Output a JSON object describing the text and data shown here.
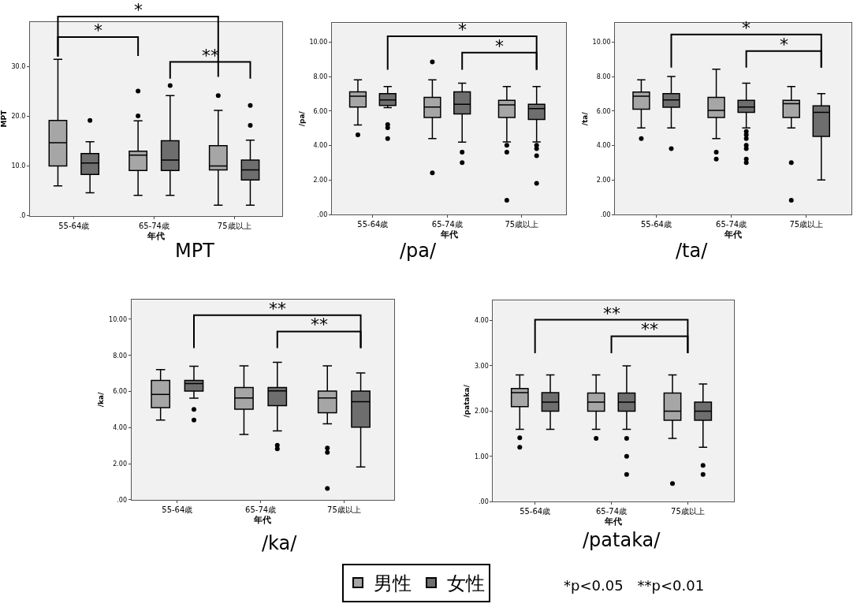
{
  "chart_data": [
    {
      "type": "box",
      "title": "MPT",
      "xlabel": "年代",
      "ylabel": "MPT",
      "categories": [
        "55-64歳",
        "65-74歳",
        "75歳以上"
      ],
      "ylim": [
        0,
        39
      ],
      "yticks": [
        {
          "value": 0,
          "label": ".0"
        },
        {
          "value": 10,
          "label": "10.0"
        },
        {
          "value": 20,
          "label": "20.0"
        },
        {
          "value": 30,
          "label": "30.0"
        }
      ],
      "legend": "bottom",
      "series": [
        {
          "name": "男性",
          "color": "#a6a6a6",
          "boxes": [
            {
              "low": 6,
              "q1": 10,
              "median": 14.7,
              "q3": 19.2,
              "high": 31.5
            },
            {
              "low": 4.1,
              "q1": 9.1,
              "median": 12.2,
              "q3": 13,
              "high": 19.1,
              "outliers": [
                20.1,
                25.1
              ]
            },
            {
              "low": 2.1,
              "q1": 9.2,
              "median": 10,
              "q3": 14.1,
              "high": 21.2,
              "outliers": [
                24.2
              ]
            }
          ]
        },
        {
          "name": "女性",
          "color": "#6e6e6e",
          "boxes": [
            {
              "low": 4.6,
              "q1": 8.3,
              "median": 10.6,
              "q3": 12.5,
              "high": 14.9,
              "outliers": [
                19.2
              ]
            },
            {
              "low": 4.1,
              "q1": 9.1,
              "median": 11.2,
              "q3": 15.1,
              "high": 24.2,
              "outliers": [
                26.2
              ]
            },
            {
              "low": 2.1,
              "q1": 7.2,
              "median": 9.2,
              "q3": 11.2,
              "high": 15.2,
              "outliers": [
                18.2,
                22.2
              ]
            }
          ]
        }
      ],
      "annotations": [
        "*",
        "*",
        "**"
      ]
    },
    {
      "type": "box",
      "title": "/pa/",
      "xlabel": "年代",
      "ylabel": "/pa/",
      "categories": [
        "55-64歳",
        "65-74歳",
        "75歳以上"
      ],
      "ylim": [
        0,
        11.1
      ],
      "yticks": [
        {
          "value": 0,
          "label": ".00"
        },
        {
          "value": 2,
          "label": "2.00"
        },
        {
          "value": 4,
          "label": "4.00"
        },
        {
          "value": 6,
          "label": "6.00"
        },
        {
          "value": 8,
          "label": "8.00"
        },
        {
          "value": 10,
          "label": "10.00"
        }
      ],
      "legend": "bottom",
      "series": [
        {
          "color": "#a6a6a6",
          "boxes": [
            {
              "low": 5.2,
              "q1": 6.24,
              "median": 6.86,
              "q3": 7.12,
              "high": 7.82,
              "outliers": [
                4.62
              ]
            },
            {
              "low": 4.41,
              "q1": 5.63,
              "median": 6.24,
              "q3": 6.8,
              "high": 7.82,
              "outliers": [
                8.85,
                2.42
              ]
            },
            {
              "low": 4.21,
              "q1": 5.63,
              "median": 6.36,
              "q3": 6.62,
              "high": 7.42,
              "outliers": [
                4.02,
                3.62,
                0.82
              ]
            }
          ]
        },
        {
          "color": "#6e6e6e",
          "boxes": [
            {
              "low": 6.2,
              "q1": 6.33,
              "median": 6.65,
              "q3": 7.01,
              "high": 7.42,
              "outliers": [
                5.22,
                5.03,
                4.41
              ]
            },
            {
              "low": 4.2,
              "q1": 5.83,
              "median": 6.4,
              "q3": 7.12,
              "high": 7.62,
              "outliers": [
                3.62,
                3.01
              ]
            },
            {
              "low": 4.21,
              "q1": 5.52,
              "median": 6.14,
              "q3": 6.4,
              "high": 7.42,
              "outliers": [
                4.02,
                3.82,
                3.41,
                1.81
              ]
            }
          ]
        }
      ],
      "annotations": [
        "*",
        "*"
      ]
    },
    {
      "type": "box",
      "title": "/ta/",
      "xlabel": "年代",
      "ylabel": "/ta/",
      "categories": [
        "55-64歳",
        "65-74歳",
        "75歳以上"
      ],
      "ylim": [
        0,
        11.1
      ],
      "yticks": [
        {
          "value": 0,
          "label": ".00"
        },
        {
          "value": 2,
          "label": "2.00"
        },
        {
          "value": 4,
          "label": "4.00"
        },
        {
          "value": 6,
          "label": "6.00"
        },
        {
          "value": 8,
          "label": "8.00"
        },
        {
          "value": 10,
          "label": "10.00"
        }
      ],
      "legend": "bottom",
      "series": [
        {
          "color": "#a6a6a6",
          "boxes": [
            {
              "low": 5.02,
              "q1": 6.11,
              "median": 6.86,
              "q3": 7.1,
              "high": 7.82,
              "outliers": [
                4.41
              ]
            },
            {
              "low": 4.41,
              "q1": 5.63,
              "median": 6.04,
              "q3": 6.8,
              "high": 8.43,
              "outliers": [
                3.62,
                3.22
              ]
            },
            {
              "low": 5.02,
              "q1": 5.63,
              "median": 6.43,
              "q3": 6.62,
              "high": 7.42,
              "outliers": [
                3.01,
                0.82
              ]
            }
          ]
        },
        {
          "color": "#6e6e6e",
          "boxes": [
            {
              "low": 5.02,
              "q1": 6.22,
              "median": 6.65,
              "q3": 7.01,
              "high": 8.01,
              "outliers": [
                3.82
              ]
            },
            {
              "low": 5.02,
              "q1": 5.93,
              "median": 6.24,
              "q3": 6.62,
              "high": 7.62,
              "outliers": [
                4.82,
                4.62,
                4.41,
                4.02,
                3.82,
                3.22,
                3.01
              ]
            },
            {
              "low": 2.0,
              "q1": 4.53,
              "median": 5.93,
              "q3": 6.31,
              "high": 7.01
            }
          ]
        }
      ],
      "annotations": [
        "*",
        "*"
      ]
    },
    {
      "type": "box",
      "title": "/ka/",
      "xlabel": "年代",
      "ylabel": "/ka/",
      "categories": [
        "55-64歳",
        "65-74歳",
        "75歳以上"
      ],
      "ylim": [
        0,
        11.1
      ],
      "yticks": [
        {
          "value": 0,
          "label": ".00"
        },
        {
          "value": 2,
          "label": "2.00"
        },
        {
          "value": 4,
          "label": "4.00"
        },
        {
          "value": 6,
          "label": "6.00"
        },
        {
          "value": 8,
          "label": "8.00"
        },
        {
          "value": 10,
          "label": "10.00"
        }
      ],
      "legend": "bottom",
      "series": [
        {
          "color": "#a6a6a6",
          "boxes": [
            {
              "low": 4.42,
              "q1": 5.11,
              "median": 5.84,
              "q3": 6.61,
              "high": 7.21
            },
            {
              "low": 3.62,
              "q1": 5.02,
              "median": 5.64,
              "q3": 6.22,
              "high": 7.42
            },
            {
              "low": 4.21,
              "q1": 4.82,
              "median": 5.64,
              "q3": 6.02,
              "high": 7.42,
              "outliers": [
                2.87,
                2.63,
                0.63
              ]
            }
          ]
        },
        {
          "color": "#6e6e6e",
          "boxes": [
            {
              "low": 5.63,
              "q1": 6.02,
              "median": 6.44,
              "q3": 6.61,
              "high": 7.4,
              "outliers": [
                5.01,
                4.42
              ]
            },
            {
              "low": 3.82,
              "q1": 5.22,
              "median": 6.03,
              "q3": 6.22,
              "high": 7.62,
              "outliers": [
                3.02,
                2.83
              ]
            },
            {
              "low": 1.82,
              "q1": 4.03,
              "median": 5.43,
              "q3": 6.02,
              "high": 7.03
            }
          ]
        }
      ],
      "annotations": [
        "**",
        "**"
      ]
    },
    {
      "type": "box",
      "title": "/pataka/",
      "xlabel": "年代",
      "ylabel": "/pataka/",
      "categories": [
        "55-64歳",
        "65-74歳",
        "75歳以上"
      ],
      "ylim": [
        0,
        4.44
      ],
      "yticks": [
        {
          "value": 0,
          "label": ".00"
        },
        {
          "value": 1,
          "label": "1.00"
        },
        {
          "value": 2,
          "label": "2.00"
        },
        {
          "value": 3,
          "label": "3.00"
        },
        {
          "value": 4,
          "label": "4.00"
        }
      ],
      "legend": "bottom",
      "series": [
        {
          "color": "#a6a6a6",
          "boxes": [
            {
              "low": 1.6,
              "q1": 2.1,
              "median": 2.41,
              "q3": 2.5,
              "high": 2.8,
              "outliers": [
                1.41,
                1.2
              ]
            },
            {
              "low": 1.6,
              "q1": 2.0,
              "median": 2.2,
              "q3": 2.4,
              "high": 2.8,
              "outliers": [
                1.4
              ]
            },
            {
              "low": 1.4,
              "q1": 1.8,
              "median": 2.0,
              "q3": 2.4,
              "high": 2.8,
              "outliers": [
                0.4
              ]
            }
          ]
        },
        {
          "color": "#6e6e6e",
          "boxes": [
            {
              "low": 1.6,
              "q1": 2.0,
              "median": 2.2,
              "q3": 2.41,
              "high": 2.8
            },
            {
              "low": 1.6,
              "q1": 2.0,
              "median": 2.2,
              "q3": 2.4,
              "high": 3.0,
              "outliers": [
                1.4,
                1.0,
                0.6
              ]
            },
            {
              "low": 1.2,
              "q1": 1.8,
              "median": 2.0,
              "q3": 2.2,
              "high": 2.6,
              "outliers": [
                0.8,
                0.6
              ]
            }
          ]
        }
      ],
      "annotations": [
        "**",
        "**",
        "*p<0.05　**p<0.01"
      ]
    }
  ]
}
